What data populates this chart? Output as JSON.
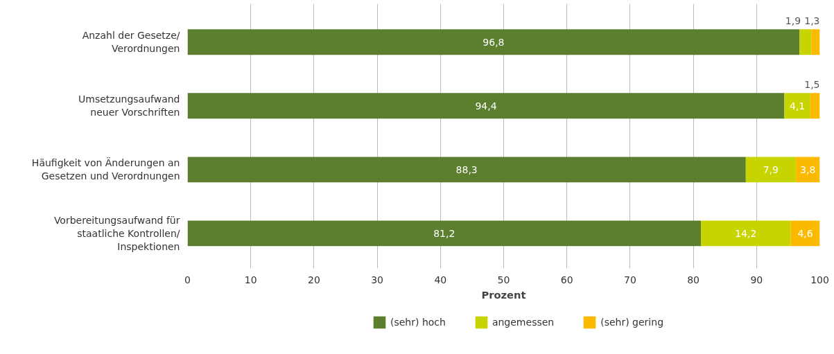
{
  "chart_data": {
    "type": "bar",
    "orientation": "horizontal",
    "stacked": true,
    "xlabel": "Prozent",
    "categories": [
      "Anzahl der Gesetze/\nVerordnungen",
      "Umsetzungsaufwand\nneuer Vorschriften",
      "Häufigkeit von Änderungen an\nGesetzen und Verordnungen",
      "Vorbereitungsaufwand für\nstaatliche Kontrollen/\nInspektionen"
    ],
    "series": [
      {
        "name": "(sehr) hoch",
        "color": "#5b7f2f",
        "values": [
          96.8,
          94.4,
          88.3,
          81.2
        ],
        "value_labels": [
          "96,8",
          "94,4",
          "88,3",
          "81,2"
        ]
      },
      {
        "name": "angemessen",
        "color": "#c8d400",
        "values": [
          1.9,
          4.1,
          7.9,
          14.2
        ],
        "value_labels": [
          "1,9",
          "4,1",
          "7,9",
          "14,2"
        ]
      },
      {
        "name": "(sehr) gering",
        "color": "#fbb900",
        "values": [
          1.3,
          1.5,
          3.8,
          4.6
        ],
        "value_labels": [
          "1,3",
          "1,5",
          "3,8",
          "4,6"
        ]
      }
    ],
    "xlim": [
      0,
      100
    ],
    "xticks": [
      0,
      10,
      20,
      30,
      40,
      50,
      60,
      70,
      80,
      90,
      100
    ],
    "grid": "x",
    "legend": "bottom"
  }
}
